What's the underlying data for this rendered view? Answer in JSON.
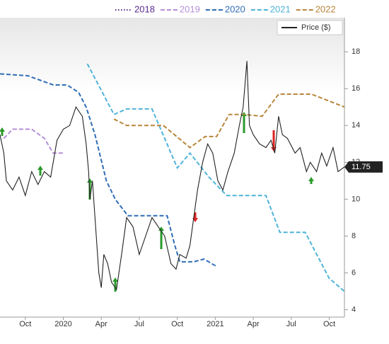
{
  "chart_data": {
    "type": "line",
    "xlim": [
      0,
      27.2
    ],
    "xticks": [
      {
        "value": 2,
        "label": "Oct"
      },
      {
        "value": 5,
        "label": "2020"
      },
      {
        "value": 8,
        "label": "Apr"
      },
      {
        "value": 11,
        "label": "Jul"
      },
      {
        "value": 14,
        "label": "Oct"
      },
      {
        "value": 17,
        "label": "2021"
      },
      {
        "value": 20,
        "label": "Apr"
      },
      {
        "value": 23,
        "label": "Jul"
      },
      {
        "value": 26,
        "label": "Oct"
      }
    ],
    "ylim": [
      3.6,
      19.85
    ],
    "yticks": [
      4,
      6,
      8,
      10,
      12,
      14,
      16,
      18
    ],
    "grid": false,
    "series": [
      {
        "name": "2018",
        "color": "#5b2c8f",
        "dash": "dotted",
        "x": [],
        "values": []
      },
      {
        "name": "2019",
        "color": "#b58fd8",
        "dash": "dashed",
        "x": [
          0.3,
          1,
          2.5,
          3.5,
          4.2,
          5
        ],
        "values": [
          13.3,
          13.8,
          13.8,
          13.3,
          12.5,
          12.5
        ]
      },
      {
        "name": "2020",
        "color": "#2f6db5",
        "dash": "dashed",
        "x": [
          0,
          2.2,
          4.2,
          5.3,
          6.2,
          6.8,
          7.5,
          8.4,
          9.1,
          10.1,
          11.5,
          13.2,
          13.8,
          14.2,
          15.3,
          16.1,
          17.1
        ],
        "values": [
          16.8,
          16.7,
          16.2,
          16.2,
          15.8,
          15.0,
          13.5,
          11,
          10,
          9.1,
          9.1,
          9.1,
          7.5,
          6.6,
          6.6,
          6.75,
          6.35
        ]
      },
      {
        "name": "2021",
        "color": "#4fb3d9",
        "dash": "dashed",
        "x": [
          6.9,
          9.0,
          10.0,
          12.0,
          14.0,
          15.0,
          16.5,
          17.9,
          21.0,
          22.1,
          24.1,
          26.0,
          27.2
        ],
        "values": [
          17.35,
          14.6,
          14.9,
          14.9,
          11.7,
          12.5,
          11.2,
          10.2,
          10.2,
          8.2,
          8.2,
          5.7,
          5.0
        ]
      },
      {
        "name": "2022",
        "color": "#b8863b",
        "dash": "dashed",
        "x": [
          9.0,
          10.0,
          12.9,
          15.0,
          16.2,
          17.1,
          18.1,
          19.3,
          20.7,
          22.0,
          24.6,
          27.2
        ],
        "values": [
          14.35,
          14.0,
          14.0,
          12.8,
          13.4,
          13.4,
          14.6,
          14.6,
          14.5,
          15.7,
          15.7,
          15.0
        ]
      },
      {
        "name": "Price ($)",
        "color": "#222222",
        "dash": "solid",
        "x": [
          0,
          0.3,
          0.5,
          1,
          1.5,
          2,
          2.5,
          3,
          3.5,
          4,
          4.5,
          5,
          5.5,
          6,
          6.5,
          6.8,
          7,
          7.1,
          7.3,
          7.6,
          7.8,
          8,
          8.2,
          8.5,
          8.8,
          9.2,
          9.6,
          10,
          10.5,
          11,
          11.5,
          12,
          12.5,
          13,
          13.5,
          13.9,
          14.2,
          14.7,
          15,
          15.3,
          15.6,
          16,
          16.4,
          16.8,
          17.2,
          17.6,
          18,
          18.5,
          18.9,
          19.2,
          19.5,
          19.7,
          20,
          20.5,
          21,
          21.4,
          21.7,
          22,
          22.3,
          22.7,
          23.3,
          23.7,
          24.2,
          24.5,
          25,
          25.4,
          25.8,
          26.3,
          26.7,
          27.2
        ],
        "values": [
          13.5,
          12.5,
          11,
          10.5,
          11.2,
          10.2,
          11.5,
          10.8,
          11.5,
          11.2,
          13.2,
          13.8,
          14,
          15,
          14.5,
          13,
          11.5,
          10,
          11,
          8,
          6,
          5.2,
          7,
          6.5,
          5.5,
          5.1,
          7,
          9,
          8.5,
          7,
          8,
          9,
          8.5,
          8,
          6.5,
          6.2,
          7,
          6.8,
          7.5,
          9,
          10.5,
          12,
          13,
          12.5,
          11,
          10.5,
          11.5,
          12.5,
          14,
          15,
          17.5,
          14,
          13.5,
          13,
          12.8,
          13.2,
          12.5,
          14.5,
          13.5,
          13.3,
          12.5,
          12.8,
          11.5,
          12,
          11.5,
          12.5,
          11.8,
          12.8,
          11.5,
          11.75
        ]
      }
    ]
  }
}
